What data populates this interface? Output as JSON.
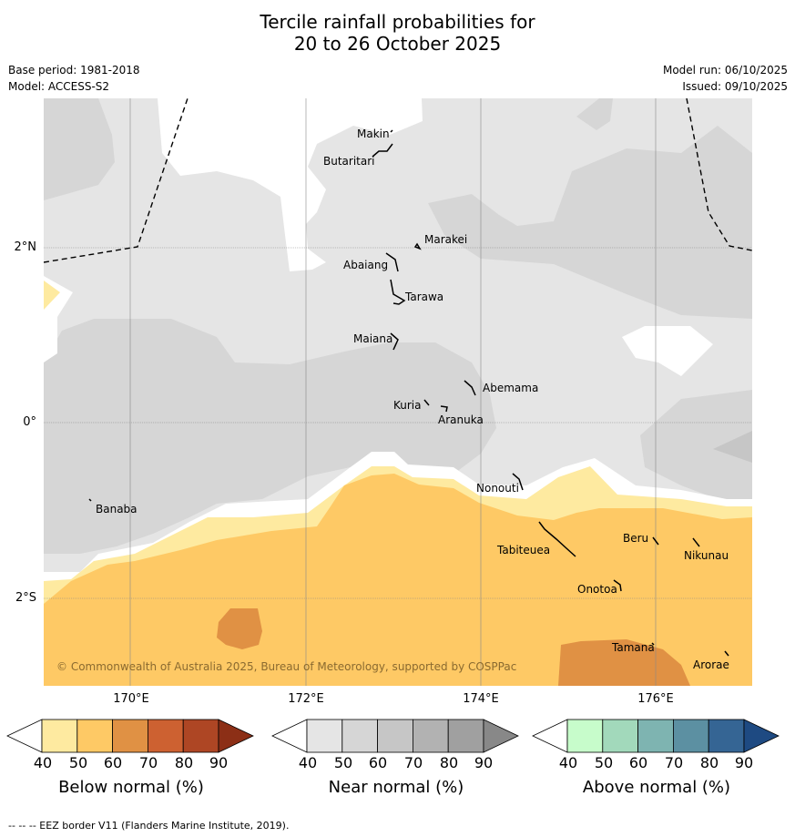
{
  "title_line1": "Tercile rainfall probabilities for",
  "title_line2": "20 to 26 October 2025",
  "meta": {
    "base_period": "Base period: 1981-2018",
    "model": "Model: ACCESS-S2",
    "model_run": "Model run: 06/10/2025",
    "issued": "Issued: 09/10/2025"
  },
  "axes": {
    "lon_labels": [
      "170°E",
      "172°E",
      "174°E",
      "176°E"
    ],
    "lat_labels": [
      "2°N",
      "0°",
      "2°S"
    ]
  },
  "places": [
    {
      "name": "Makin"
    },
    {
      "name": "Butaritari"
    },
    {
      "name": "Marakei"
    },
    {
      "name": "Abaiang"
    },
    {
      "name": "Tarawa"
    },
    {
      "name": "Maiana"
    },
    {
      "name": "Abemama"
    },
    {
      "name": "Kuria"
    },
    {
      "name": "Aranuka"
    },
    {
      "name": "Nonouti"
    },
    {
      "name": "Banaba"
    },
    {
      "name": "Tabiteuea"
    },
    {
      "name": "Beru"
    },
    {
      "name": "Nikunau"
    },
    {
      "name": "Onotoa"
    },
    {
      "name": "Tamana"
    },
    {
      "name": "Arorae"
    }
  ],
  "copyright": "© Commonwealth of Australia 2025, Bureau of Meteorology, supported by COSPPac",
  "colorbars": [
    {
      "label": "Below normal (%)",
      "ticks": [
        "40",
        "50",
        "60",
        "70",
        "80",
        "90"
      ],
      "colors": [
        "#ffffff",
        "#feeaa0",
        "#fec965",
        "#e09144",
        "#cd6131",
        "#ae4624",
        "#8c2f16"
      ]
    },
    {
      "label": "Near normal (%)",
      "ticks": [
        "40",
        "50",
        "60",
        "70",
        "80",
        "90"
      ],
      "colors": [
        "#ffffff",
        "#e5e5e5",
        "#d6d6d6",
        "#c6c6c6",
        "#b2b2b2",
        "#a0a0a0",
        "#888888"
      ]
    },
    {
      "label": "Above normal (%)",
      "ticks": [
        "40",
        "50",
        "60",
        "70",
        "80",
        "90"
      ],
      "colors": [
        "#ffffff",
        "#c7fccb",
        "#a2d9bb",
        "#7eb4b1",
        "#5c90a2",
        "#356594",
        "#1e4a82"
      ]
    }
  ],
  "footer": "--  --  -- EEZ border V11 (Flanders Marine Institute, 2019)."
}
